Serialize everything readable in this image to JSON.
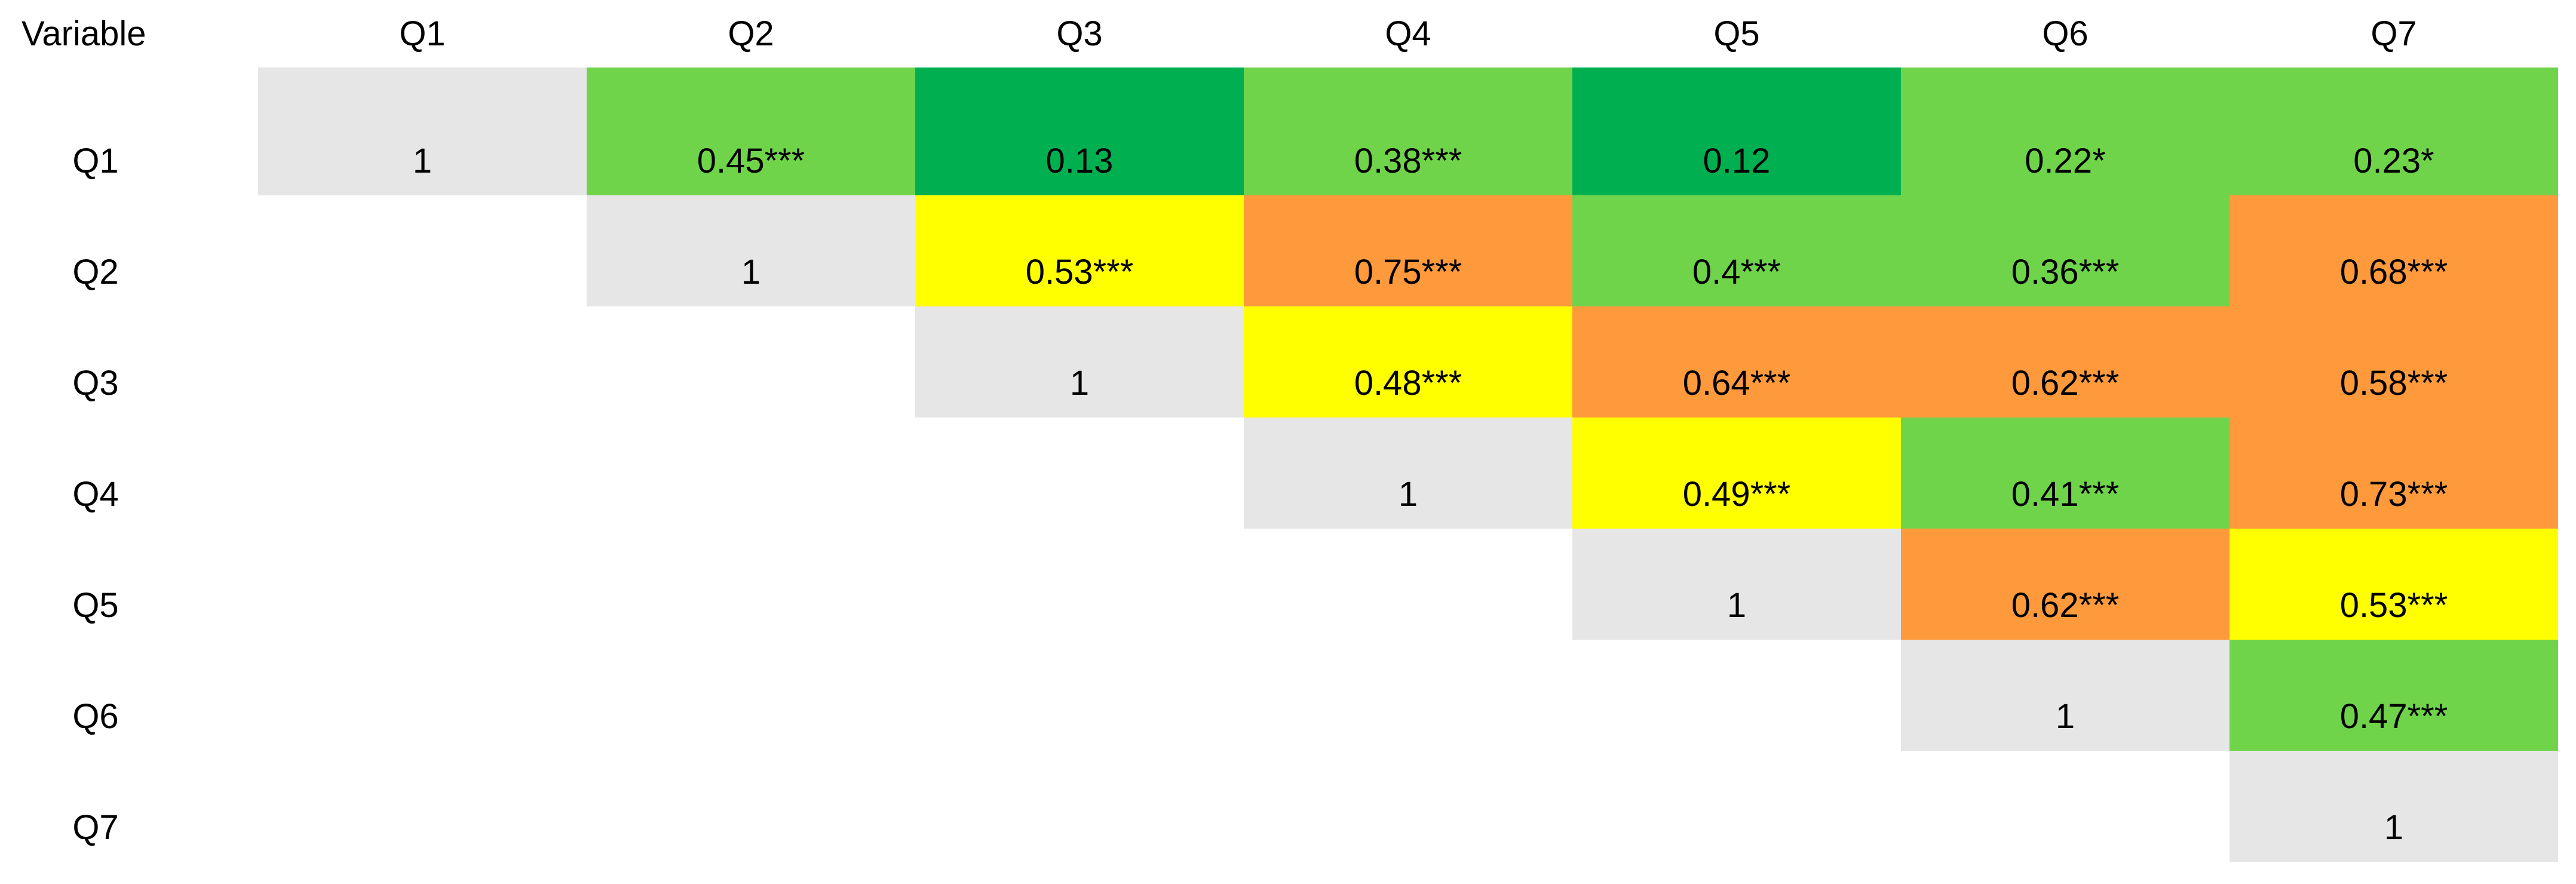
{
  "header": {
    "corner": "Variable",
    "columns": [
      "Q1",
      "Q2",
      "Q3",
      "Q4",
      "Q5",
      "Q6",
      "Q7"
    ]
  },
  "rows": [
    {
      "label": "Q1",
      "cells": [
        {
          "text": "1",
          "color": "#e7e6e6"
        },
        {
          "text": "0.45***",
          "color": "#70d44b"
        },
        {
          "text": "0.13",
          "color": "#00b050"
        },
        {
          "text": "0.38***",
          "color": "#70d44b"
        },
        {
          "text": "0.12",
          "color": "#00b050"
        },
        {
          "text": "0.22*",
          "color": "#70d44b"
        },
        {
          "text": "0.23*",
          "color": "#70d44b"
        }
      ]
    },
    {
      "label": "Q2",
      "cells": [
        {
          "text": "1",
          "color": "#e7e6e6"
        },
        {
          "text": "0.53***",
          "color": "#ffff00"
        },
        {
          "text": "0.75***",
          "color": "#ff9a3c"
        },
        {
          "text": "0.4***",
          "color": "#70d44b"
        },
        {
          "text": "0.36***",
          "color": "#70d44b"
        },
        {
          "text": "0.68***",
          "color": "#ff9a3c"
        }
      ]
    },
    {
      "label": "Q3",
      "cells": [
        {
          "text": "1",
          "color": "#e7e6e6"
        },
        {
          "text": "0.48***",
          "color": "#ffff00"
        },
        {
          "text": "0.64***",
          "color": "#ff9a3c"
        },
        {
          "text": "0.62***",
          "color": "#ff9a3c"
        },
        {
          "text": "0.58***",
          "color": "#ff9a3c"
        }
      ]
    },
    {
      "label": "Q4",
      "cells": [
        {
          "text": "1",
          "color": "#e7e6e6"
        },
        {
          "text": "0.49***",
          "color": "#ffff00"
        },
        {
          "text": "0.41***",
          "color": "#70d44b"
        },
        {
          "text": "0.73***",
          "color": "#ff9a3c"
        }
      ]
    },
    {
      "label": "Q5",
      "cells": [
        {
          "text": "1",
          "color": "#e7e6e6"
        },
        {
          "text": "0.62***",
          "color": "#ff9a3c"
        },
        {
          "text": "0.53***",
          "color": "#ffff00"
        }
      ]
    },
    {
      "label": "Q6",
      "cells": [
        {
          "text": "1",
          "color": "#e7e6e6"
        },
        {
          "text": "0.47***",
          "color": "#70d44b"
        }
      ]
    },
    {
      "label": "Q7",
      "cells": [
        {
          "text": "1",
          "color": "#e7e6e6"
        }
      ]
    }
  ]
}
